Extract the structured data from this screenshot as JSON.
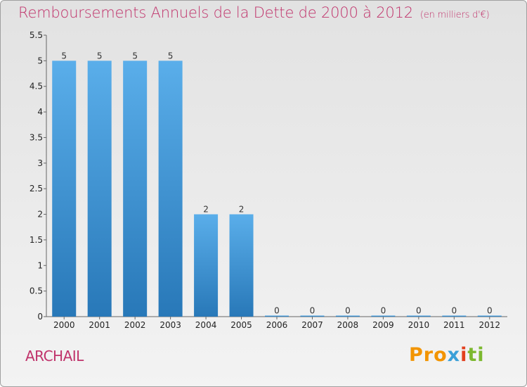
{
  "header": {
    "title": "Remboursements Annuels de la Dette de 2000 à 2012",
    "subtitle": "(en milliers d'€)"
  },
  "place_name": "ARCHAIL",
  "logo": {
    "p1": "Pro",
    "p2": "x",
    "p3": "i",
    "p4": "ti"
  },
  "colors": {
    "title": "#c0336b",
    "bar_top": "#5aaeea",
    "bar_bottom": "#2878b8"
  },
  "chart_data": {
    "type": "bar",
    "title": "Remboursements Annuels de la Dette de 2000 à 2012",
    "xlabel": "",
    "ylabel": "",
    "categories": [
      "2000",
      "2001",
      "2002",
      "2003",
      "2004",
      "2005",
      "2006",
      "2007",
      "2008",
      "2009",
      "2010",
      "2011",
      "2012"
    ],
    "values": [
      5,
      5,
      5,
      5,
      2,
      2,
      0,
      0,
      0,
      0,
      0,
      0,
      0
    ],
    "value_labels": [
      "5",
      "5",
      "5",
      "5",
      "2",
      "2",
      "0",
      "0",
      "0",
      "0",
      "0",
      "0",
      "0"
    ],
    "ylim": [
      0,
      5.5
    ],
    "yticks": [
      0,
      0.5,
      1,
      1.5,
      2,
      2.5,
      3,
      3.5,
      4,
      4.5,
      5,
      5.5
    ],
    "ytick_labels": [
      "0",
      "0.5",
      "1",
      "1.5",
      "2",
      "2.5",
      "3",
      "3.5",
      "4",
      "4.5",
      "5",
      "5.5"
    ],
    "grid": false,
    "legend": "none"
  }
}
